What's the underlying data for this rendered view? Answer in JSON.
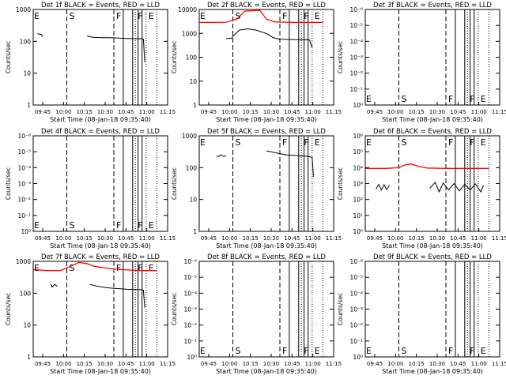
{
  "x_ticks": [
    "09:45",
    "10:00",
    "10:15",
    "10:30",
    "10:45",
    "11:00",
    "11:15"
  ],
  "xlabel": "Start Time (08-Jan-18 09:35:40)",
  "ylabel": "Counts/sec",
  "event_markers": [
    {
      "label": "E",
      "style": "dotted",
      "t": 0.0
    },
    {
      "label": "S",
      "style": "dashed",
      "t": 0.25
    },
    {
      "label": "F",
      "style": "dashed",
      "t": 0.6
    },
    {
      "label": "F",
      "style": "dotted",
      "t": 0.76
    },
    {
      "label": "E",
      "style": "dotted",
      "t": 0.84
    }
  ],
  "solid_marker_positions": [
    0.67,
    0.74,
    0.78,
    0.81
  ],
  "end_marker_position": 0.92,
  "colors": {
    "events": "#000000",
    "lld": "#ff0000"
  },
  "chart_data": [
    {
      "title": "Det 1f BLACK = Events, RED = LLD",
      "type": "line",
      "yscale": "log",
      "y_ticks": [
        "1",
        "10",
        "100",
        "1000"
      ],
      "ylim": [
        1,
        1300
      ],
      "series": [
        {
          "color": "#000000",
          "points": [
            [
              0.03,
              210
            ],
            [
              0.06,
              200
            ],
            [
              0.07,
              170
            ]
          ]
        },
        {
          "color": "#000000",
          "points": [
            [
              0.4,
              175
            ],
            [
              0.45,
              160
            ],
            [
              0.5,
              158
            ],
            [
              0.55,
              156
            ],
            [
              0.6,
              155
            ],
            [
              0.65,
              150
            ],
            [
              0.7,
              148
            ],
            [
              0.75,
              145
            ],
            [
              0.8,
              145
            ],
            [
              0.82,
              140
            ],
            [
              0.83,
              25
            ]
          ]
        }
      ]
    },
    {
      "title": "Det 2f BLACK = Events, RED = LLD",
      "type": "line",
      "yscale": "log",
      "y_ticks": [
        "1",
        "10",
        "100",
        "1000",
        "10000"
      ],
      "ylim": [
        1,
        13000
      ],
      "series": [
        {
          "color": "#ff0000",
          "points": [
            [
              0.0,
              3600
            ],
            [
              0.1,
              3600
            ],
            [
              0.2,
              3700
            ],
            [
              0.28,
              5000
            ],
            [
              0.34,
              11000
            ],
            [
              0.45,
              12000
            ],
            [
              0.5,
              5000
            ],
            [
              0.56,
              3800
            ],
            [
              0.7,
              3600
            ],
            [
              0.8,
              3600
            ],
            [
              0.92,
              3600
            ]
          ]
        },
        {
          "color": "#000000",
          "points": [
            [
              0.2,
              700
            ],
            [
              0.22,
              750
            ],
            [
              0.24,
              740
            ],
            [
              0.25,
              900
            ],
            [
              0.3,
              1700
            ],
            [
              0.36,
              1900
            ],
            [
              0.42,
              1700
            ],
            [
              0.5,
              1200
            ],
            [
              0.55,
              800
            ],
            [
              0.6,
              680
            ],
            [
              0.7,
              660
            ],
            [
              0.76,
              650
            ],
            [
              0.82,
              640
            ],
            [
              0.84,
              300
            ]
          ]
        }
      ]
    },
    {
      "title": "Det 3f BLACK = Events, RED = LLD",
      "type": "line",
      "yscale": "log",
      "y_ticks": [
        "10⁰",
        "10⁻¹",
        "10⁻²",
        "10⁻³",
        "10⁻⁴",
        "10⁻⁵",
        "10⁻⁶"
      ],
      "ylim": [
        1,
        1000000
      ],
      "series": []
    },
    {
      "title": "Det 4f BLACK = Events, RED = LLD",
      "type": "line",
      "yscale": "log",
      "y_ticks": [
        "10⁰",
        "10⁻¹",
        "10⁻²",
        "10⁻³",
        "10⁻⁴",
        "10⁻⁵",
        "10⁻⁶"
      ],
      "ylim": [
        1,
        1000000
      ],
      "series": []
    },
    {
      "title": "Det 5f BLACK = Events, RED = LLD",
      "type": "line",
      "yscale": "log",
      "y_ticks": [
        "1",
        "10",
        "100",
        "1000"
      ],
      "ylim": [
        1,
        1300
      ],
      "series": [
        {
          "color": "#000000",
          "points": [
            [
              0.13,
              300
            ],
            [
              0.14,
              270
            ],
            [
              0.16,
              310
            ],
            [
              0.18,
              280
            ],
            [
              0.2,
              290
            ]
          ]
        },
        {
          "color": "#000000",
          "points": [
            [
              0.5,
              420
            ],
            [
              0.55,
              380
            ],
            [
              0.6,
              340
            ],
            [
              0.65,
              310
            ],
            [
              0.7,
              300
            ],
            [
              0.75,
              290
            ],
            [
              0.8,
              280
            ],
            [
              0.84,
              260
            ],
            [
              0.85,
              60
            ]
          ]
        }
      ]
    },
    {
      "title": "Det 6f BLACK = Events, RED = LLD",
      "type": "line",
      "yscale": "log",
      "y_ticks": [
        "10⁰",
        "10¹",
        "10²",
        "10³",
        "10⁴",
        "10⁵",
        "10⁶"
      ],
      "ylim": [
        1,
        1000000
      ],
      "series": [
        {
          "color": "#ff0000",
          "points": [
            [
              0.0,
              9000
            ],
            [
              0.15,
              9000
            ],
            [
              0.25,
              10000
            ],
            [
              0.3,
              15000
            ],
            [
              0.34,
              17000
            ],
            [
              0.4,
              12000
            ],
            [
              0.46,
              9500
            ],
            [
              0.6,
              9000
            ],
            [
              0.8,
              9000
            ],
            [
              0.92,
              9000
            ]
          ]
        },
        {
          "color": "#000000",
          "points": [
            [
              0.08,
              450
            ],
            [
              0.1,
              900
            ],
            [
              0.12,
              400
            ],
            [
              0.14,
              850
            ],
            [
              0.16,
              420
            ],
            [
              0.18,
              800
            ]
          ]
        },
        {
          "color": "#000000",
          "points": [
            [
              0.48,
              500
            ],
            [
              0.52,
              1200
            ],
            [
              0.55,
              300
            ],
            [
              0.58,
              1100
            ],
            [
              0.62,
              400
            ],
            [
              0.66,
              1000
            ],
            [
              0.7,
              350
            ],
            [
              0.74,
              900
            ],
            [
              0.78,
              400
            ],
            [
              0.82,
              950
            ],
            [
              0.86,
              300
            ],
            [
              0.88,
              800
            ]
          ]
        }
      ]
    },
    {
      "title": "Det 7f BLACK = Events, RED = LLD",
      "type": "line",
      "yscale": "log",
      "y_ticks": [
        "1",
        "10",
        "100",
        "1000"
      ],
      "ylim": [
        1,
        1300
      ],
      "series": [
        {
          "color": "#ff0000",
          "points": [
            [
              0.0,
              700
            ],
            [
              0.1,
              650
            ],
            [
              0.2,
              650
            ],
            [
              0.28,
              900
            ],
            [
              0.34,
              1200
            ],
            [
              0.4,
              1100
            ],
            [
              0.45,
              900
            ],
            [
              0.55,
              780
            ],
            [
              0.65,
              700
            ],
            [
              0.8,
              650
            ],
            [
              0.92,
              650
            ]
          ]
        },
        {
          "color": "#000000",
          "points": [
            [
              0.13,
              240
            ],
            [
              0.14,
              190
            ],
            [
              0.16,
              230
            ],
            [
              0.18,
              200
            ]
          ]
        },
        {
          "color": "#000000",
          "points": [
            [
              0.42,
              230
            ],
            [
              0.48,
              200
            ],
            [
              0.55,
              180
            ],
            [
              0.6,
              170
            ],
            [
              0.65,
              165
            ],
            [
              0.7,
              160
            ],
            [
              0.75,
              158
            ],
            [
              0.8,
              155
            ],
            [
              0.82,
              150
            ],
            [
              0.83,
              40
            ]
          ]
        }
      ]
    },
    {
      "title": "Det 8f BLACK = Events, RED = LLD",
      "type": "line",
      "yscale": "log",
      "y_ticks": [
        "10⁰",
        "10⁻¹",
        "10⁻²",
        "10⁻³",
        "10⁻⁴",
        "10⁻⁵",
        "10⁻⁶"
      ],
      "ylim": [
        1,
        1000000
      ],
      "series": []
    },
    {
      "title": "Det 9f BLACK = Events, RED = LLD",
      "type": "line",
      "yscale": "log",
      "y_ticks": [
        "10⁰",
        "10⁻¹",
        "10⁻²",
        "10⁻³",
        "10⁻⁴",
        "10⁻⁵",
        "10⁻⁶"
      ],
      "ylim": [
        1,
        1000000
      ],
      "series": []
    }
  ]
}
